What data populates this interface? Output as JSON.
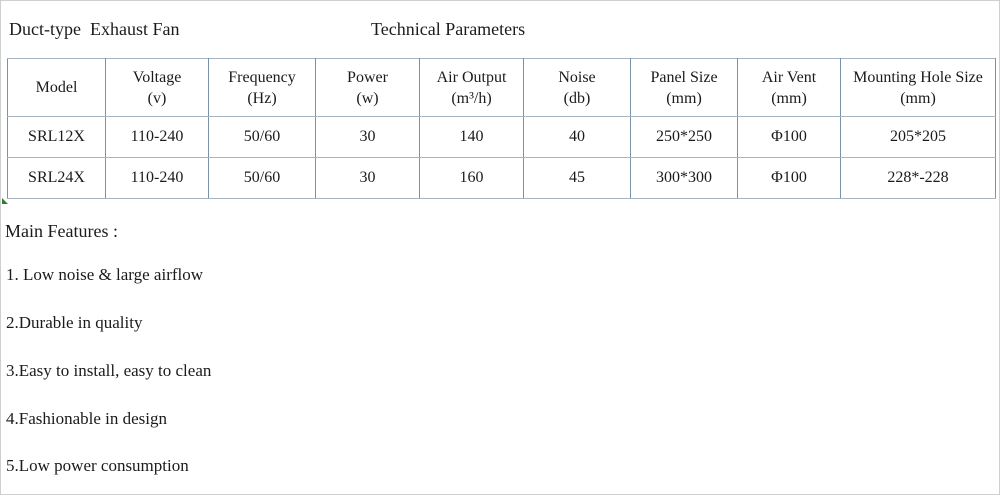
{
  "page": {
    "title_left": "Duct-type  Exhaust Fan",
    "title_center": "Technical Parameters"
  },
  "table": {
    "columns": [
      {
        "label": "Model",
        "unit": ""
      },
      {
        "label": "Voltage",
        "unit": "(v)"
      },
      {
        "label": "Frequency",
        "unit": "(Hz)"
      },
      {
        "label": "Power",
        "unit": "(w)"
      },
      {
        "label": "Air Output",
        "unit": "(m³/h)"
      },
      {
        "label": "Noise",
        "unit": "(db)"
      },
      {
        "label": "Panel Size",
        "unit": "(mm)"
      },
      {
        "label": "Air Vent",
        "unit": "(mm)"
      },
      {
        "label": "Mounting Hole Size",
        "unit": "(mm)"
      }
    ],
    "rows": [
      [
        "SRL12X",
        "110-240",
        "50/60",
        "30",
        "140",
        "40",
        "250*250",
        "Φ100",
        "205*205"
      ],
      [
        "SRL24X",
        "110-240",
        "50/60",
        "30",
        "160",
        "45",
        "300*300",
        "Φ100",
        "228*-228"
      ]
    ]
  },
  "features": {
    "heading": "Main Features :",
    "items": [
      "1. Low noise & large airflow",
      "2.Durable in quality",
      "3.Easy to install, easy to clean",
      "4.Fashionable in design",
      "5.Low power consumption"
    ]
  },
  "colors": {
    "border_vertical": "#7a92a8",
    "border_horizontal": "#a8b5c2",
    "corner_marker_green": "#2e7d32",
    "text": "#1b1b1b",
    "background": "#ffffff"
  }
}
